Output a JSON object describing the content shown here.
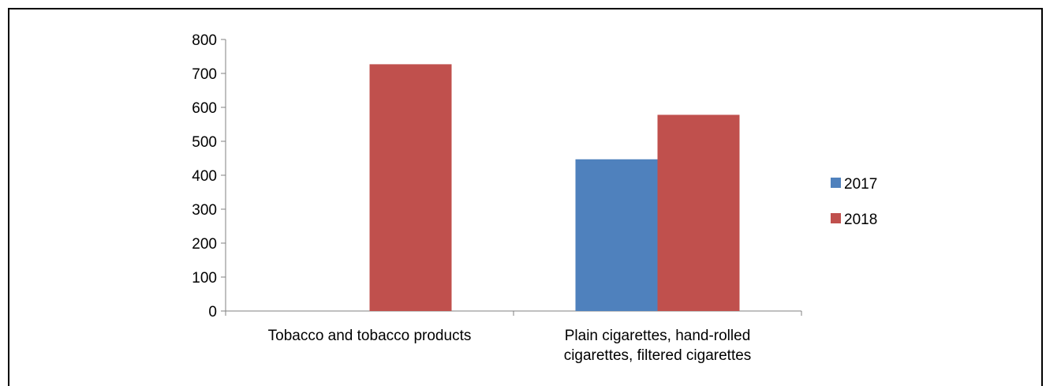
{
  "chart_data": {
    "type": "bar",
    "categories": [
      [
        "Tobacco and tobacco products"
      ],
      [
        "Plain cigarettes, hand-rolled",
        "cigarettes, filtered cigarettes"
      ]
    ],
    "series": [
      {
        "name": "2017",
        "color": "#4f81bd",
        "values": [
          0,
          447
        ]
      },
      {
        "name": "2018",
        "color": "#c0504d",
        "values": [
          727,
          578
        ]
      }
    ],
    "ylim": [
      0,
      800
    ],
    "yticks": [
      0,
      100,
      200,
      300,
      400,
      500,
      600,
      700,
      800
    ],
    "grid": false,
    "legend_position": "right"
  }
}
